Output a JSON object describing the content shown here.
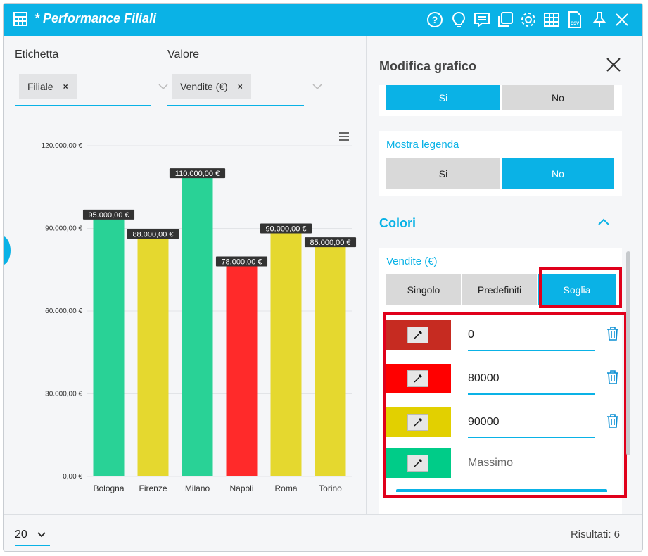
{
  "window": {
    "title": "* Performance Filiali",
    "tools": [
      "help-icon",
      "lightbulb-icon",
      "comment-icon",
      "copy-window-icon",
      "gear-icon",
      "table-icon",
      "csv-file-icon",
      "pin-icon",
      "close-icon"
    ]
  },
  "filters": {
    "label_label": "Etichetta",
    "label_chip": "Filiale",
    "value_label": "Valore",
    "value_chip": "Vendite (€)",
    "chip_remove": "×"
  },
  "chart_data": {
    "type": "bar",
    "categories": [
      "Bologna",
      "Firenze",
      "Milano",
      "Napoli",
      "Roma",
      "Torino"
    ],
    "values": [
      95000,
      88000,
      110000,
      78000,
      90000,
      85000
    ],
    "data_labels": [
      "95.000,00 €",
      "88.000,00 €",
      "110.000,00 €",
      "78.000,00 €",
      "90.000,00 €",
      "85.000,00 €"
    ],
    "bar_colors": [
      "#29d296",
      "#e5d82f",
      "#29d296",
      "#ff2a2a",
      "#e5d82f",
      "#e5d82f"
    ],
    "ylim": [
      0,
      120000
    ],
    "yticks": [
      0,
      30000,
      60000,
      90000,
      120000
    ],
    "ytick_labels": [
      "0,00 €",
      "30.000,00 €",
      "60.000,00 €",
      "90.000,00 €",
      "120.000,00 €"
    ],
    "grid": true,
    "title": "",
    "xlabel": "",
    "ylabel": ""
  },
  "panel": {
    "title": "Modifica grafico",
    "top_toggle": {
      "yes": "Si",
      "no": "No",
      "selected": "yes"
    },
    "legend": {
      "label": "Mostra legenda",
      "yes": "Si",
      "no": "No",
      "selected": "no"
    },
    "colors_section": "Colori",
    "series_name": "Vendite (€)",
    "color_modes": [
      "Singolo",
      "Predefiniti",
      "Soglia"
    ],
    "selected_mode": "Soglia",
    "thresholds": [
      {
        "value": "0",
        "color": "#c62b21"
      },
      {
        "value": "80000",
        "color": "#ff0000"
      },
      {
        "value": "90000",
        "color": "#e2d000"
      }
    ],
    "max_row": {
      "placeholder": "Massimo",
      "color": "#00cc88"
    }
  },
  "footer": {
    "page_size": "20",
    "results": "Risultati: 6"
  },
  "colors": {
    "accent": "#0ab2e6",
    "highlight": "#e0001b"
  }
}
